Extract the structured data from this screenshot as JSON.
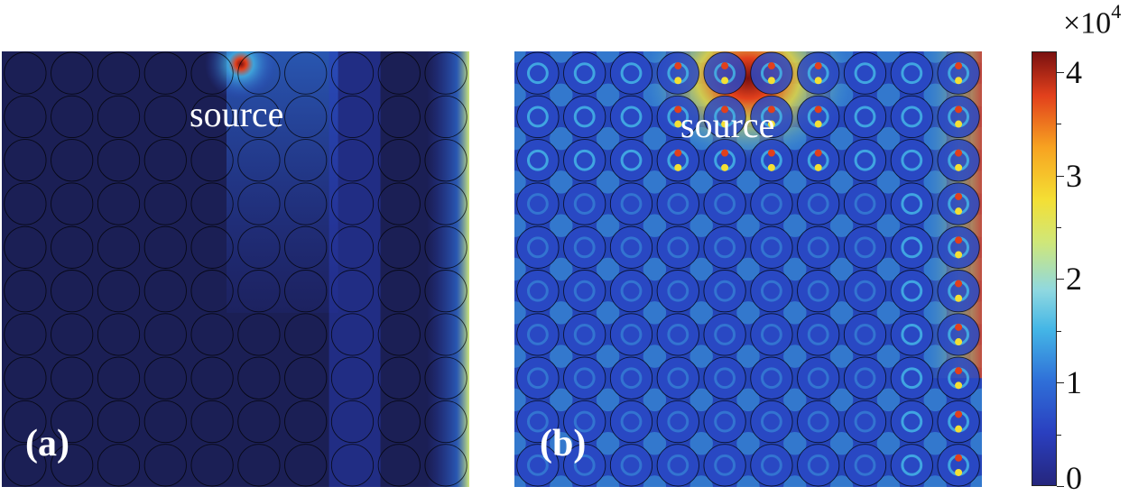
{
  "chart_data": {
    "type": "heatmap",
    "panels": [
      {
        "id": "a",
        "label": "(a)",
        "annotation": "source",
        "grid": {
          "rows": 10,
          "cols": 10
        },
        "field_note": "energy concentrated at source (row 1, col 6) and along right column"
      },
      {
        "id": "b",
        "label": "(b)",
        "annotation": "source",
        "grid": {
          "rows": 10,
          "cols": 10
        },
        "field_note": "field spread across whole lattice, strongest near top center and right edge"
      }
    ],
    "colorbar": {
      "min": 0,
      "max": 4.2,
      "ticks": [
        0,
        1,
        2,
        3,
        4
      ],
      "exponent_text": "×10",
      "exponent_power": "4",
      "colormap": "jet",
      "colors": [
        "#25267d",
        "#2a3fbf",
        "#2f6fd8",
        "#44b6e6",
        "#8fd8e0",
        "#cfe77a",
        "#f4df34",
        "#f7a321",
        "#e2401c",
        "#7a1010"
      ]
    }
  }
}
